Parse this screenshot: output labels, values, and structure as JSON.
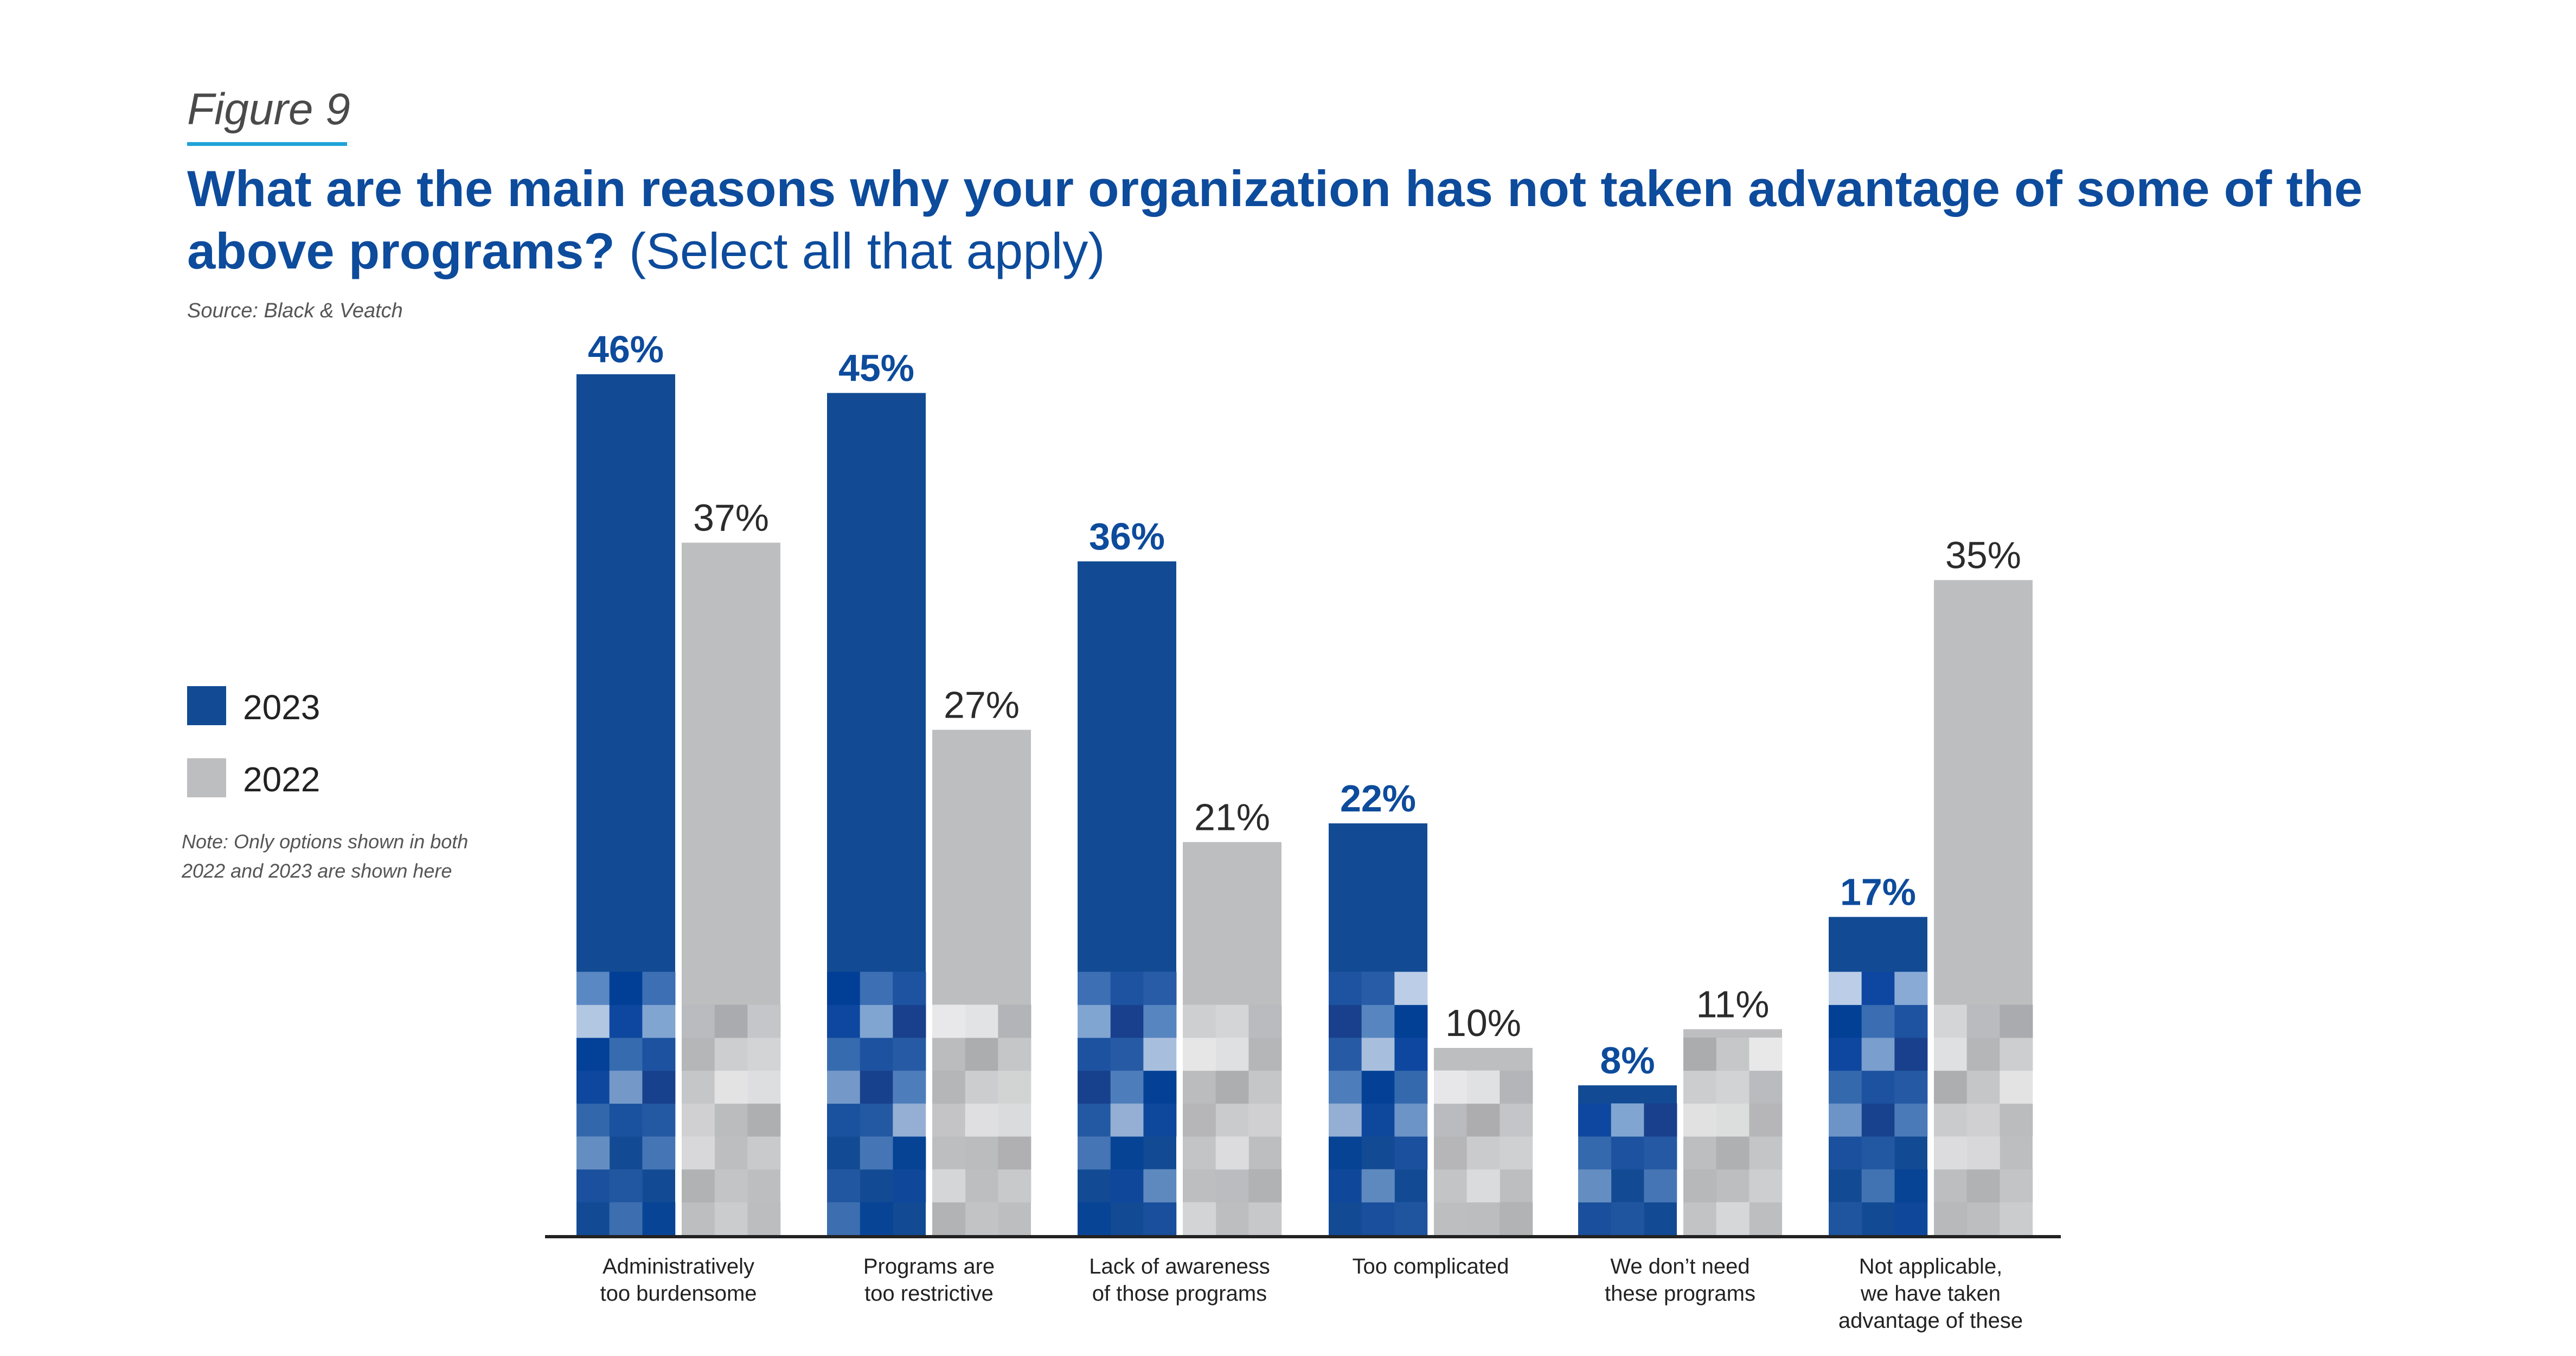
{
  "figure_label": "Figure 9",
  "title_question": "What are the main reasons why your organization has not taken advantage of some of the above programs?",
  "title_select": "(Select all that apply)",
  "source": "Source: Black & Veatch",
  "note": "Note: Only options shown in both 2022 and 2023 are shown here",
  "legend": [
    {
      "label": "2023",
      "color": "#124b94"
    },
    {
      "label": "2022",
      "color": "#bdbec0"
    }
  ],
  "chart_data": {
    "type": "bar",
    "title": "What are the main reasons why your organization has not taken advantage of some of the above programs? (Select all that apply)",
    "xlabel": "",
    "ylabel": "",
    "ylim": [
      0,
      48
    ],
    "grid": false,
    "legend_position": "left",
    "categories": [
      [
        "Administratively",
        "too burdensome"
      ],
      [
        "Programs are",
        "too restrictive"
      ],
      [
        "Lack of awareness",
        "of those programs"
      ],
      [
        "Too complicated"
      ],
      [
        "We don’t need",
        "these programs"
      ],
      [
        "Not applicable,",
        "we have taken",
        "advantage of these"
      ]
    ],
    "series": [
      {
        "name": "2023",
        "color": "#124b94",
        "values": [
          46,
          45,
          36,
          22,
          8,
          17
        ],
        "labels": [
          "46%",
          "45%",
          "36%",
          "22%",
          "8%",
          "17%"
        ]
      },
      {
        "name": "2022",
        "color": "#bdbec0",
        "values": [
          37,
          27,
          21,
          10,
          11,
          35
        ],
        "labels": [
          "37%",
          "27%",
          "21%",
          "10%",
          "11%",
          "35%"
        ]
      }
    ]
  }
}
